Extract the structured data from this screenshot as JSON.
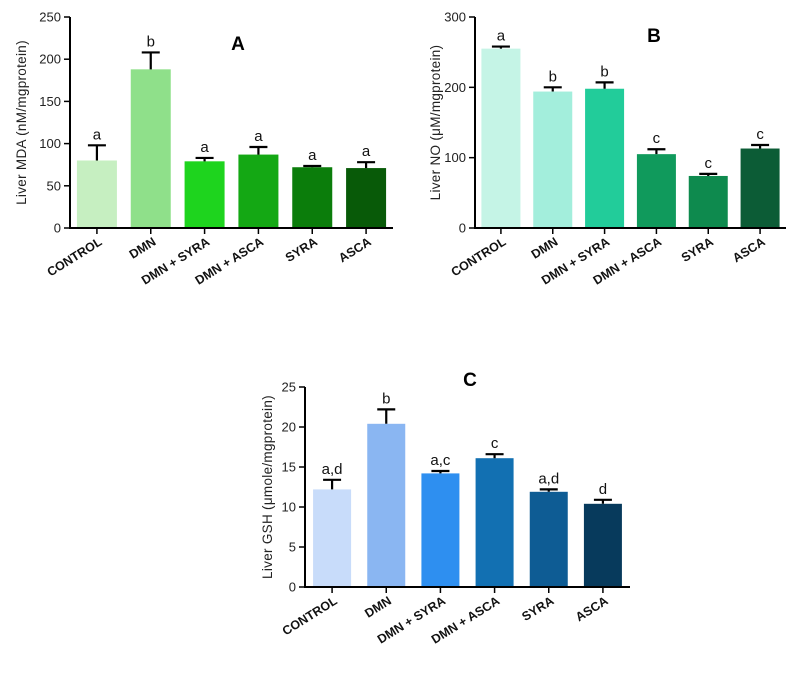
{
  "chart_data": [
    {
      "type": "bar",
      "panel_label": "A",
      "ylabel": "Liver MDA (nM/mgprotein)",
      "xlabel": "",
      "ylim": [
        0,
        250
      ],
      "yticks": [
        0,
        50,
        100,
        150,
        200,
        250
      ],
      "categories": [
        "CONTROL",
        "DMN",
        "DMN + SYRA",
        "DMN + ASCA",
        "SYRA",
        "ASCA"
      ],
      "values": [
        80,
        188,
        79,
        87,
        72,
        71
      ],
      "errors": [
        18,
        20,
        4,
        9,
        1.5,
        7
      ],
      "significance": [
        "a",
        "b",
        "a",
        "a",
        "a",
        "a"
      ],
      "colors": [
        "#c6efc1",
        "#8fe08a",
        "#1ed41e",
        "#14a814",
        "#0b7d0b",
        "#085a08"
      ]
    },
    {
      "type": "bar",
      "panel_label": "B",
      "ylabel": "Liver NO (μM/mgprotein)",
      "xlabel": "",
      "ylim": [
        0,
        300
      ],
      "yticks": [
        0,
        100,
        200,
        300
      ],
      "categories": [
        "CONTROL",
        "DMN",
        "DMN + SYRA",
        "DMN + ASCA",
        "SYRA",
        "ASCA"
      ],
      "values": [
        255,
        194,
        198,
        105,
        74,
        113
      ],
      "errors": [
        3,
        6,
        9,
        7,
        3,
        5
      ],
      "significance": [
        "a",
        "b",
        "b",
        "c",
        "c",
        "c"
      ],
      "colors": [
        "#c5f4e6",
        "#a3eedc",
        "#22cc9a",
        "#109a5c",
        "#0e8a4e",
        "#0c5c36"
      ]
    },
    {
      "type": "bar",
      "panel_label": "C",
      "ylabel": "Liver GSH (μmole/mgprotein)",
      "xlabel": "",
      "ylim": [
        0,
        25
      ],
      "yticks": [
        0,
        5,
        10,
        15,
        20,
        25
      ],
      "categories": [
        "CONTROL",
        "DMN",
        "DMN + SYRA",
        "DMN + ASCA",
        "SYRA",
        "ASCA"
      ],
      "values": [
        12.2,
        20.4,
        14.2,
        16.1,
        11.9,
        10.4
      ],
      "errors": [
        1.2,
        1.8,
        0.3,
        0.5,
        0.3,
        0.5
      ],
      "significance": [
        "a,d",
        "b",
        "a,c",
        "c",
        "a,d",
        "d"
      ],
      "colors": [
        "#c8dcfa",
        "#8ab6f2",
        "#2e8ff0",
        "#1270b2",
        "#0e5c94",
        "#073a5c"
      ]
    }
  ]
}
